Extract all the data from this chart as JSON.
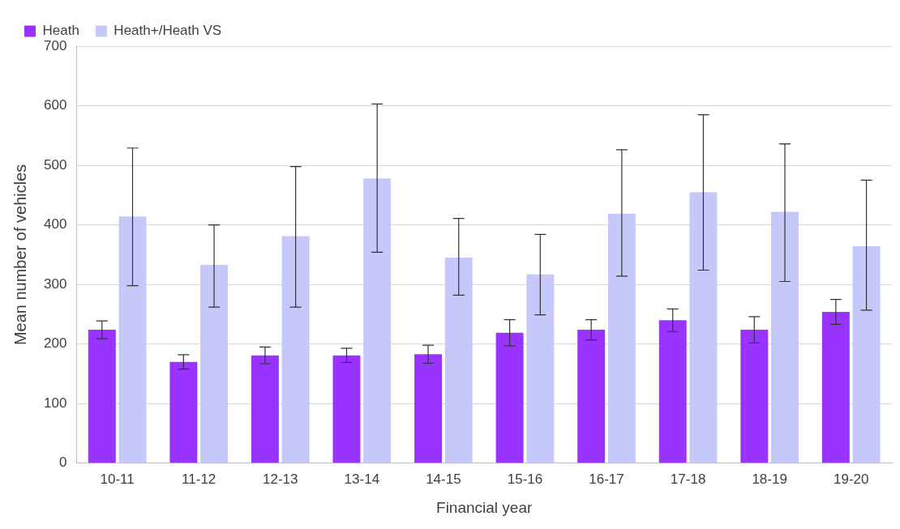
{
  "chart_data": {
    "type": "bar",
    "xlabel": "Financial year",
    "ylabel": "Mean number of vehicles",
    "categories": [
      "10-11",
      "11-12",
      "12-13",
      "13-14",
      "14-15",
      "15-16",
      "16-17",
      "17-18",
      "18-19",
      "19-20"
    ],
    "series": [
      {
        "name": "Heath",
        "color": "#9933ff",
        "values": [
          224,
          170,
          181,
          181,
          183,
          219,
          224,
          240,
          224,
          254
        ],
        "errors": [
          15,
          12,
          14,
          12,
          15,
          22,
          17,
          19,
          22,
          21
        ]
      },
      {
        "name": "Heath+/Heath VS",
        "color": "#c5c8f8",
        "values": [
          414,
          333,
          381,
          478,
          345,
          317,
          419,
          455,
          422,
          364
        ],
        "errors": [
          [
            298,
            529
          ],
          [
            262,
            400
          ],
          [
            262,
            498
          ],
          [
            354,
            603
          ],
          [
            282,
            411
          ],
          [
            249,
            384
          ],
          [
            314,
            526
          ],
          [
            324,
            585
          ],
          [
            305,
            536
          ],
          [
            257,
            475
          ]
        ]
      }
    ],
    "ylim": [
      0,
      700
    ],
    "yticks": [
      0,
      100,
      200,
      300,
      400,
      500,
      600,
      700
    ],
    "grid": "y",
    "legend": "top left"
  }
}
